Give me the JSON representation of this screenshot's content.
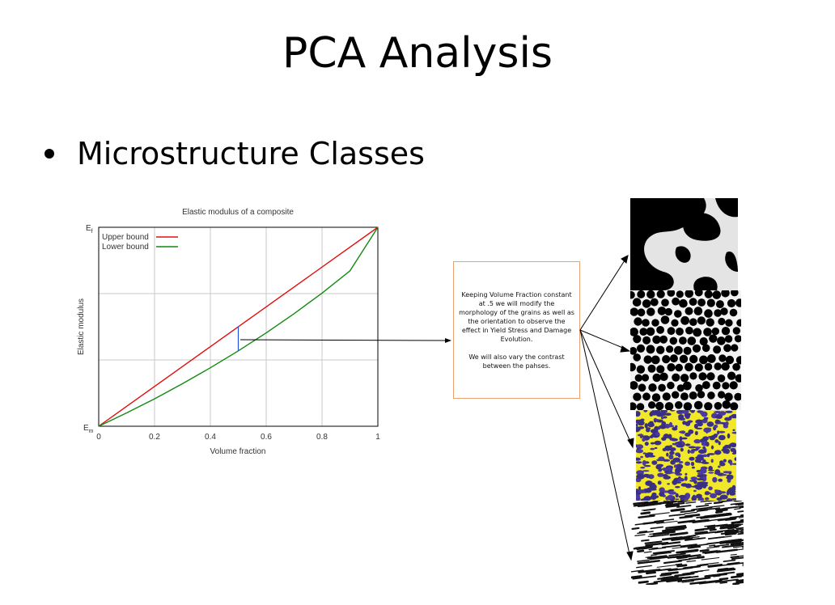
{
  "slide": {
    "title": "PCA Analysis",
    "bullet": "Microstructure Classes"
  },
  "textbox": {
    "paragraph1": "Keeping Volume Fraction constant at .5 we will modify the morphology of the grains as well as the orientation to observe the effect in Yield Stress and Damage Evolution.",
    "paragraph2": "We will also vary the contrast between the pahses."
  },
  "colors": {
    "upper": "#e01010",
    "lower": "#108a10",
    "marker": "#2050e0",
    "textbox_border": "#e8a070",
    "grid": "#c8c8c8"
  },
  "chart_data": {
    "type": "line",
    "title": "Elastic modulus of a composite",
    "xlabel": "Volume fraction",
    "ylabel": "Elastic modulus",
    "xlim": [
      0,
      1
    ],
    "x_ticks": [
      "0",
      "0.2",
      "0.4",
      "0.6",
      "0.8",
      "1"
    ],
    "y_tick_labels": {
      "bottom": "Em",
      "top": "Ef"
    },
    "grid": true,
    "legend_position": "top-left",
    "series": [
      {
        "name": "Upper bound",
        "x": [
          0,
          1
        ],
        "y": [
          0,
          1
        ]
      },
      {
        "name": "Lower bound",
        "x": [
          0,
          0.1,
          0.2,
          0.3,
          0.4,
          0.5,
          0.6,
          0.7,
          0.8,
          0.9,
          1.0
        ],
        "y": [
          0,
          0.067,
          0.138,
          0.214,
          0.294,
          0.379,
          0.469,
          0.566,
          0.669,
          0.781,
          1.0
        ]
      }
    ],
    "marker_x": 0.5
  },
  "microstructures": [
    {
      "label": "blob"
    },
    {
      "label": "dots"
    },
    {
      "label": "yellow-purple"
    },
    {
      "label": "lamellar"
    }
  ]
}
